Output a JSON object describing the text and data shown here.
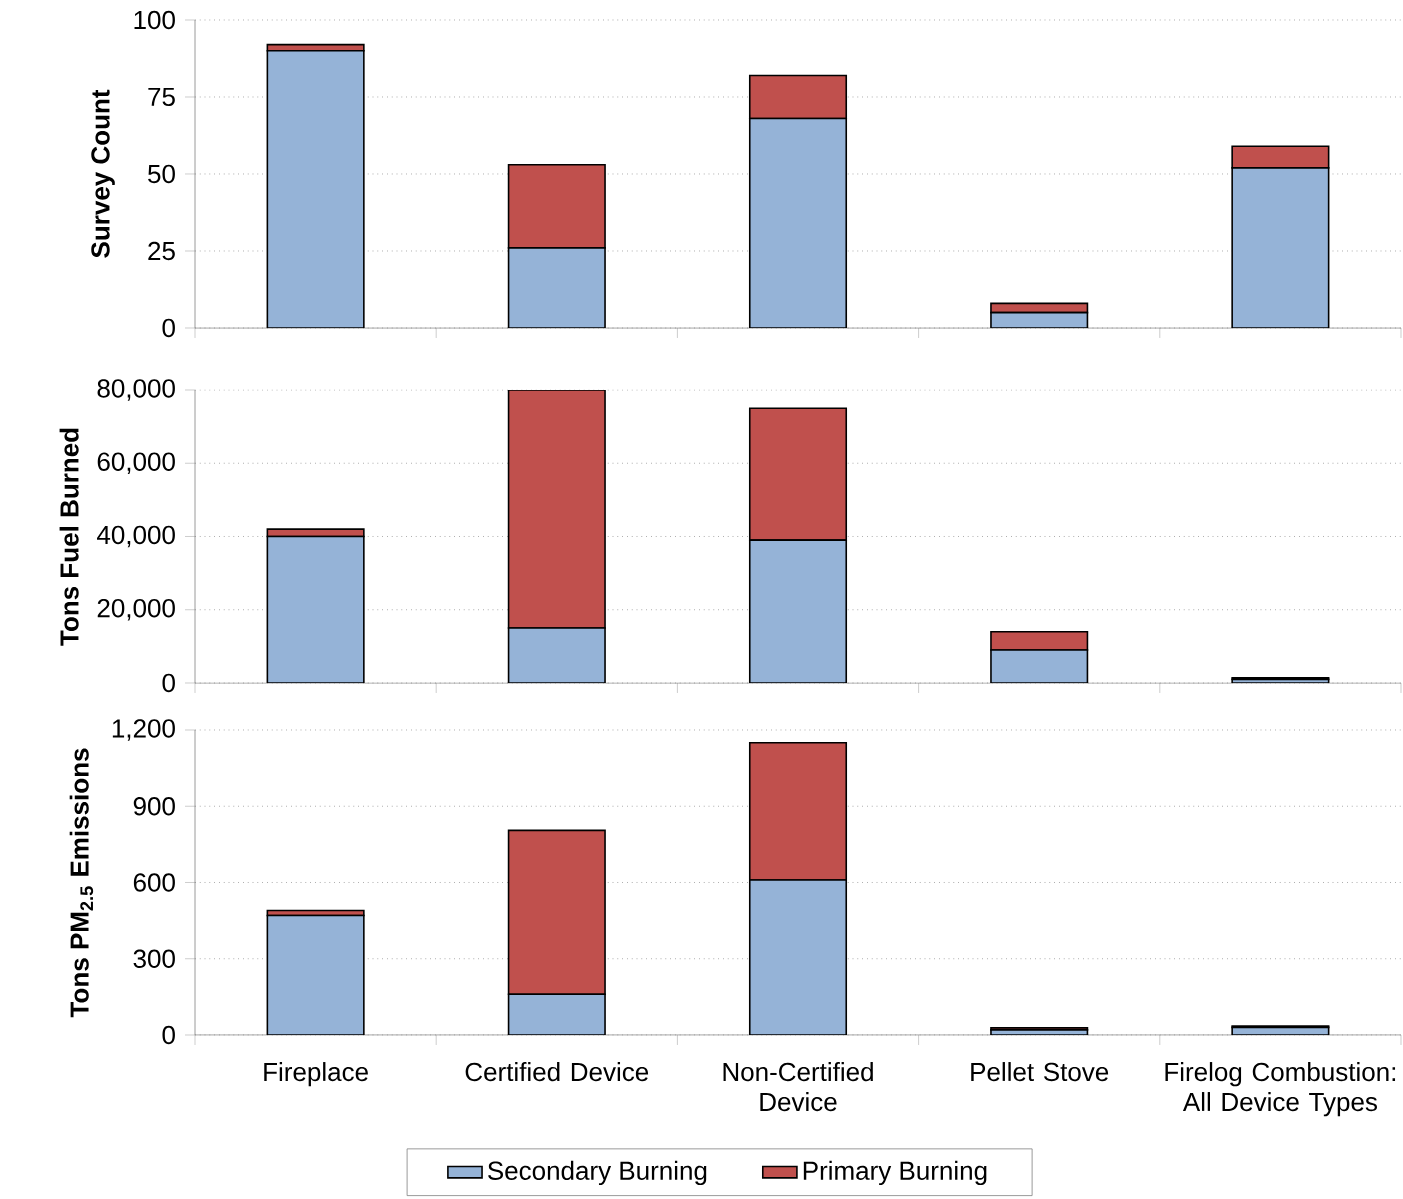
{
  "chart_data": [
    {
      "type": "bar",
      "stacked": true,
      "ylabel": "Survey Count",
      "categories": [
        null,
        null,
        null,
        null,
        null
      ],
      "tick_labels": "y",
      "grid": "y",
      "ylim": [
        0,
        100
      ],
      "yticks": [
        0,
        25,
        50,
        75,
        100
      ],
      "series": [
        {
          "color": "#95b3d7",
          "values": [
            90,
            26,
            68,
            5,
            52
          ]
        },
        {
          "color": "#c0504d",
          "values": [
            2,
            27,
            14,
            3,
            7
          ]
        }
      ]
    },
    {
      "type": "bar",
      "stacked": true,
      "ylabel": "Tons Fuel Burned",
      "categories": [
        null,
        null,
        null,
        null,
        null
      ],
      "tick_labels": "y",
      "grid": "y",
      "ylim": [
        0,
        80000
      ],
      "yticks": [
        0,
        {
          "value": 20000,
          "label": "20,000"
        },
        {
          "value": 40000,
          "label": "40,000"
        },
        {
          "value": 60000,
          "label": "60,000"
        },
        {
          "value": 80000,
          "label": "80,000"
        }
      ],
      "series": [
        {
          "color": "#95b3d7",
          "values": [
            40000,
            15000,
            39000,
            9000,
            1000
          ]
        },
        {
          "color": "#c0504d",
          "values": [
            2000,
            65000,
            36000,
            5000,
            400
          ]
        }
      ]
    },
    {
      "type": "bar",
      "stacked": true,
      "ylabel": "Tons PM$_{2.5}$ Emissions",
      "categories": [
        "Fireplace",
        "Certified Device",
        "Non-Certified Device",
        "Pellet Stove",
        "Firelog Combustion: All Device Types"
      ],
      "grid": "y",
      "legend": "bottom",
      "ylim": [
        0,
        1200
      ],
      "yticks": [
        0,
        300,
        600,
        900,
        {
          "value": 1200,
          "label": "1,200"
        }
      ],
      "series": [
        {
          "name": "Secondary Burning",
          "color": "#95b3d7",
          "values": [
            470,
            160,
            610,
            20,
            30
          ]
        },
        {
          "name": "Primary Burning",
          "color": "#c0504d",
          "values": [
            20,
            645,
            540,
            8,
            5
          ]
        }
      ]
    }
  ]
}
